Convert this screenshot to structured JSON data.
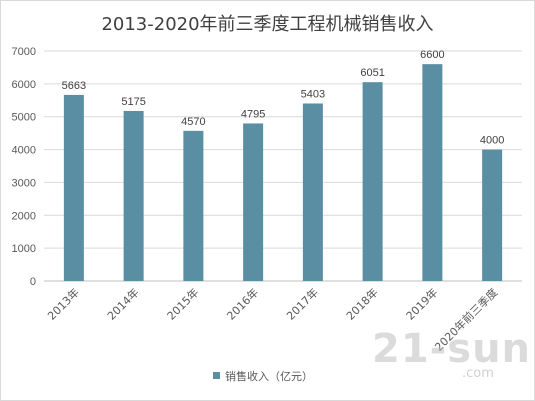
{
  "chart_data": {
    "type": "bar",
    "title": "2013-2020年前三季度工程机械销售收入",
    "categories": [
      "2013年",
      "2014年",
      "2015年",
      "2016年",
      "2017年",
      "2018年",
      "2019年",
      "2020年前三季度"
    ],
    "series": [
      {
        "name": "销售收入（亿元）",
        "values": [
          5663,
          5175,
          4570,
          4795,
          5403,
          6051,
          6600,
          4000
        ],
        "color": "#5a8ea3"
      }
    ],
    "ylim": [
      0,
      7000
    ],
    "yticks": [
      0,
      1000,
      2000,
      3000,
      4000,
      5000,
      6000,
      7000
    ],
    "grid": true,
    "legend": "bottom",
    "data_labels": true
  },
  "watermark": {
    "text": "21-sun",
    "sub": ".com"
  }
}
